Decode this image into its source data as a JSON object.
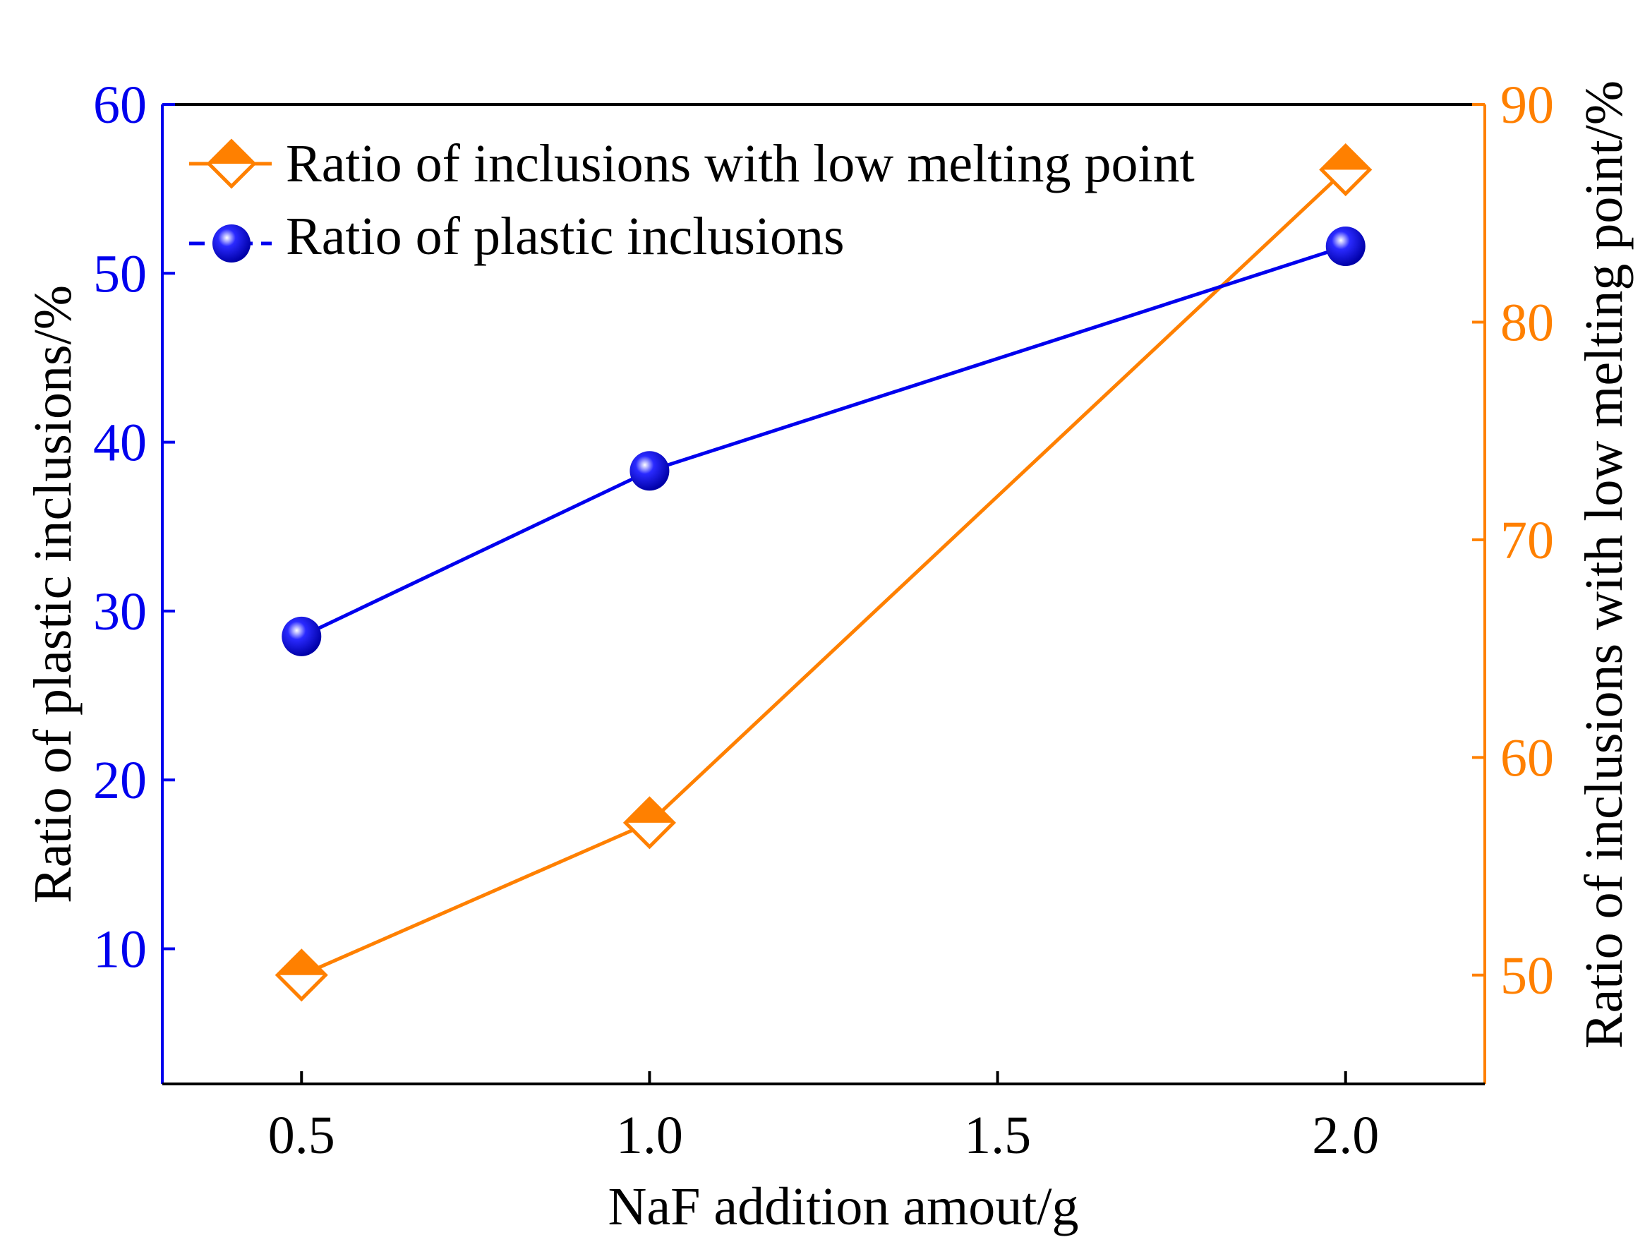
{
  "chart_data": {
    "type": "line",
    "x": [
      0.5,
      1.0,
      2.0
    ],
    "xlabel": "NaF addition amout/g",
    "xlim": [
      0.3,
      2.2
    ],
    "xticks": [
      0.5,
      1.0,
      1.5,
      2.0
    ],
    "xtick_labels": [
      "0.5",
      "1.0",
      "1.5",
      "2.0"
    ],
    "left_axis": {
      "label": "Ratio of plastic inclusions/%",
      "ylim": [
        2,
        60
      ],
      "ticks": [
        10,
        20,
        30,
        40,
        50,
        60
      ],
      "tick_labels": [
        "10",
        "20",
        "30",
        "40",
        "50",
        "60"
      ],
      "color": "#0000ee"
    },
    "right_axis": {
      "label": "Ratio of inclusions with low melting point/%",
      "ylim": [
        45,
        90
      ],
      "ticks": [
        50,
        60,
        70,
        80,
        90
      ],
      "tick_labels": [
        "50",
        "60",
        "70",
        "80",
        "90"
      ],
      "color": "#ff8000"
    },
    "series": [
      {
        "name": "Ratio of inclusions with low melting point",
        "axis": "right",
        "marker": "diamond",
        "color": "#ff8000",
        "values": [
          50.0,
          57.0,
          87.0
        ]
      },
      {
        "name": "Ratio of plastic inclusions",
        "axis": "left",
        "marker": "sphere",
        "color": "#0000ee",
        "values": [
          28.5,
          38.3,
          51.6
        ]
      }
    ],
    "legend": "top-left",
    "grid": false
  }
}
